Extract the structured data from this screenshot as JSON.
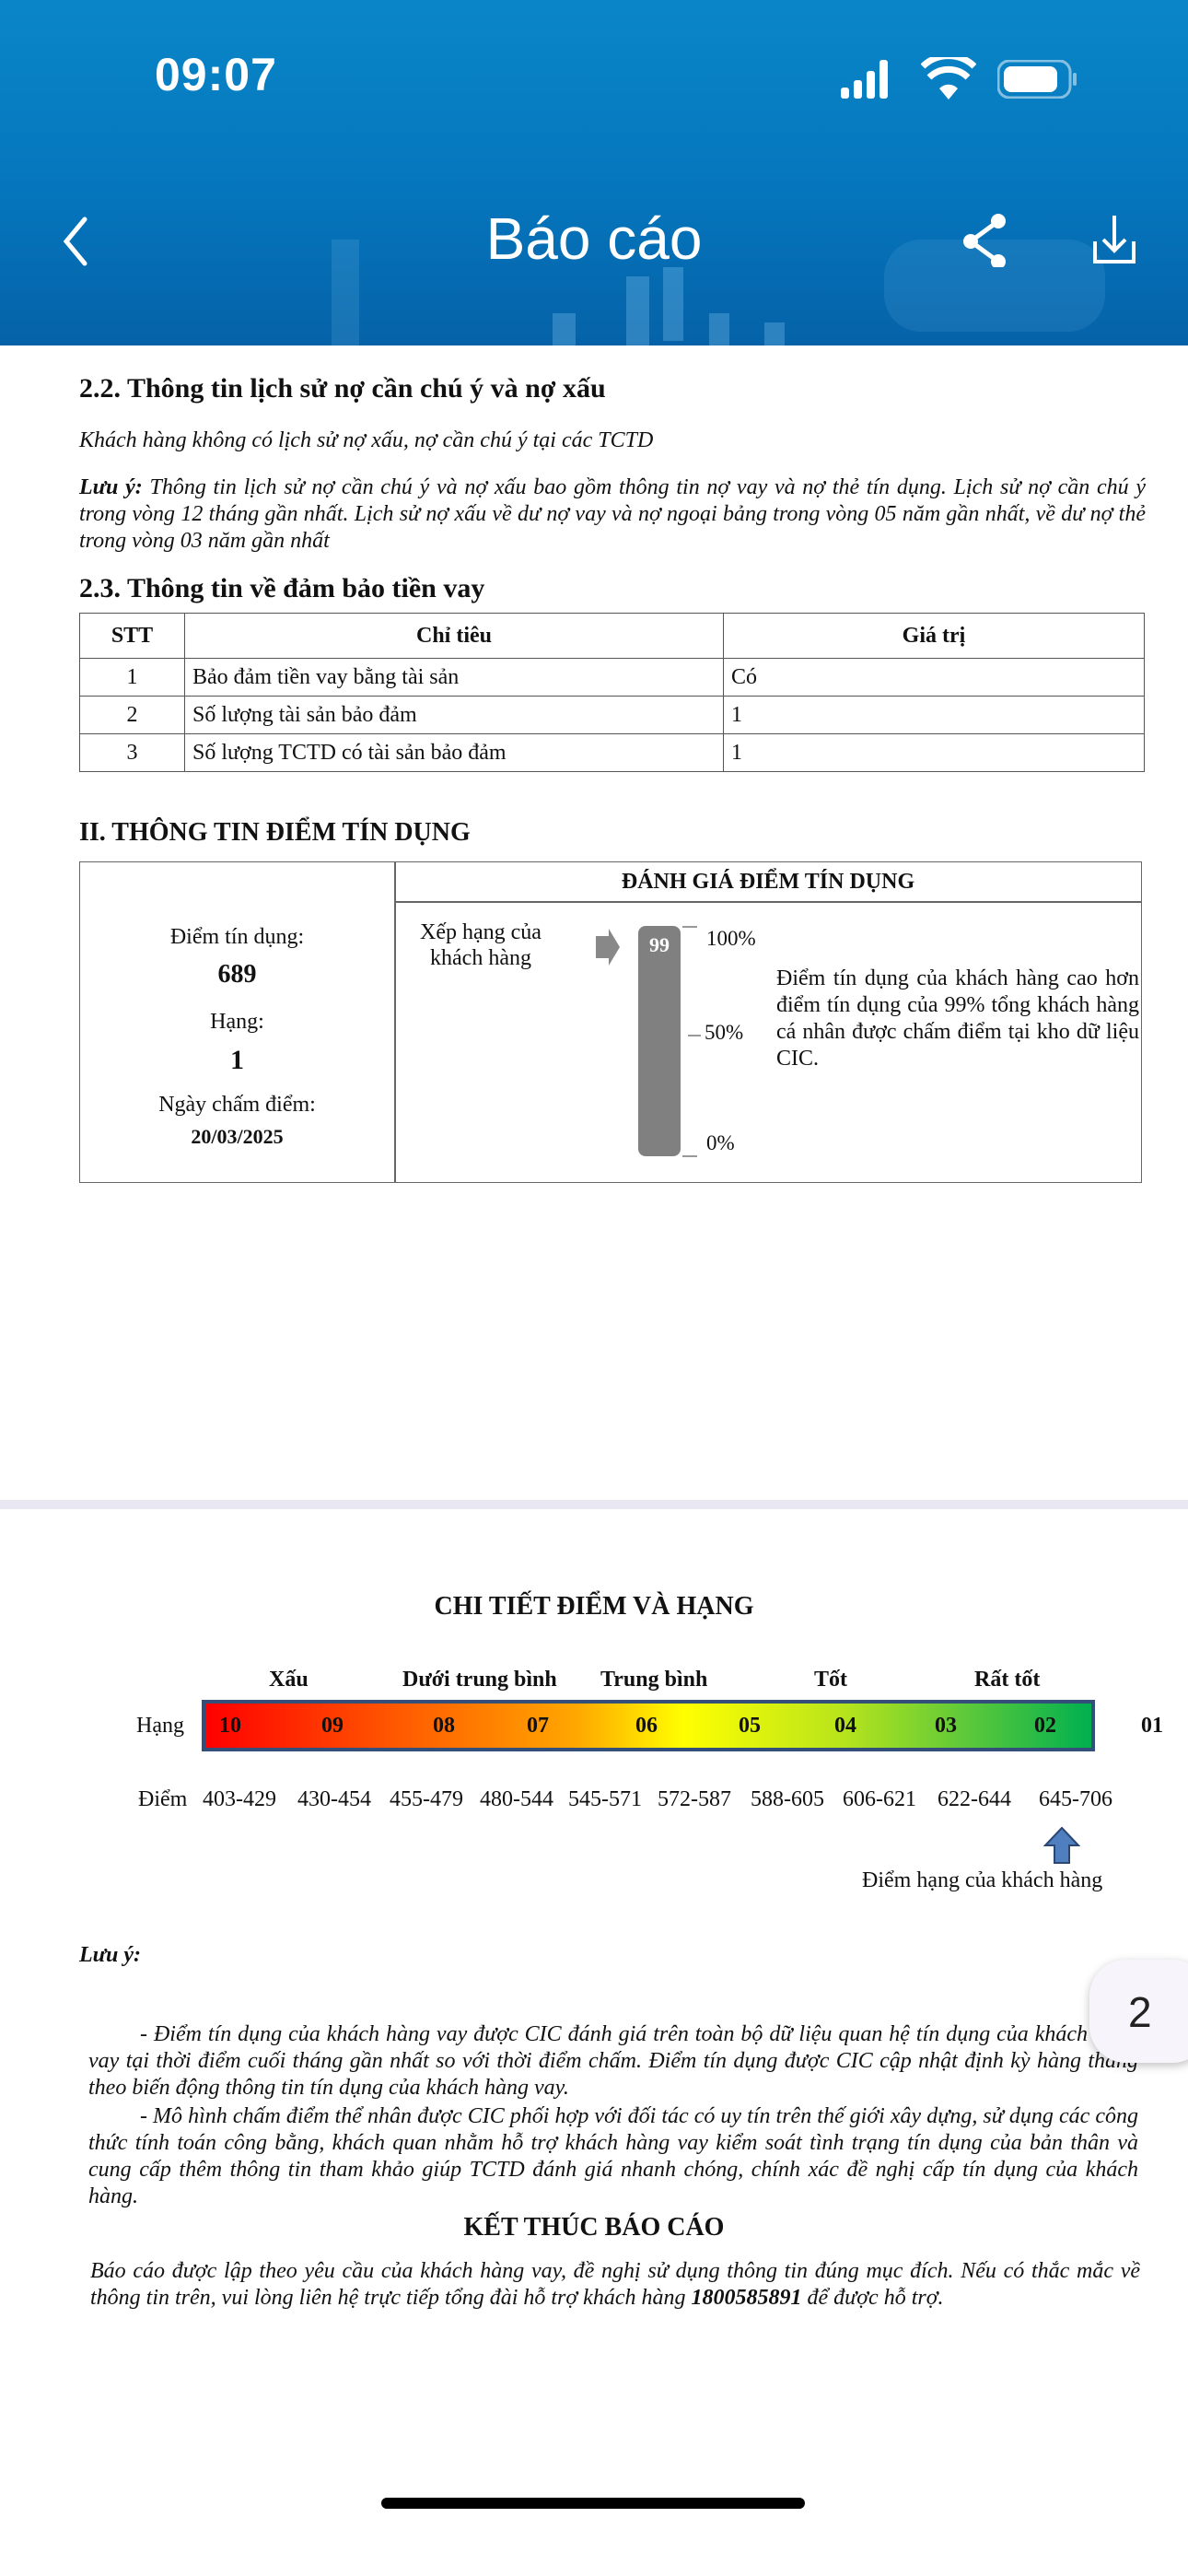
{
  "status_bar": {
    "time": "09:07"
  },
  "header": {
    "title": "Báo cáo",
    "back_icon": "chevron-left-icon",
    "share_icon": "share-icon",
    "download_icon": "download-icon"
  },
  "section_2_2": {
    "heading": "2.2. Thông tin lịch sử nợ cần chú ý và nợ xấu",
    "statement": "Khách hàng không có lịch sử nợ xấu, nợ cần chú ý tại các TCTD",
    "note_label": "Lưu ý:",
    "note_text": "Thông tin lịch sử nợ cần chú ý và nợ xấu bao gồm thông tin nợ vay và nợ thẻ tín dụng. Lịch sử nợ cần chú ý trong vòng 12 tháng gần nhất. Lịch sử nợ xấu về dư nợ vay và nợ ngoại bảng trong vòng 05 năm gần nhất, về dư nợ thẻ trong vòng 03 năm gần nhất"
  },
  "section_2_3": {
    "heading": "2.3. Thông tin về đảm bảo tiền vay",
    "columns": [
      "STT",
      "Chỉ tiêu",
      "Giá trị"
    ],
    "rows": [
      [
        "1",
        "Bảo đảm tiền vay bằng tài sản",
        "Có"
      ],
      [
        "2",
        "Số lượng tài sản bảo đảm",
        "1"
      ],
      [
        "3",
        "Số lượng TCTD có tài sản bảo đảm",
        "1"
      ]
    ]
  },
  "section_II": {
    "heading": "II. THÔNG TIN ĐIỂM TÍN DỤNG",
    "score_label": "Điểm tín dụng:",
    "score": "689",
    "rank_label": "Hạng:",
    "rank": "1",
    "date_label": "Ngày chấm điểm:",
    "date": "20/03/2025",
    "eval_heading": "ĐÁNH GIÁ ĐIỂM TÍN DỤNG",
    "position_label_1": "Xếp hạng của",
    "position_label_2": "khách hàng",
    "percentile": "99",
    "percentile_value": 99,
    "ticks": [
      "100%",
      "50%",
      "0%"
    ],
    "description": "Điểm tín dụng của khách hàng cao hơn điểm tín dụng của 99% tổng khách hàng cá nhân được chấm điểm tại kho dữ liệu CIC."
  },
  "detail": {
    "heading": "CHI TIẾT ĐIỂM VÀ HẠNG",
    "bands": [
      "Xấu",
      "Dưới trung bình",
      "Trung bình",
      "Tốt",
      "Rất tốt"
    ],
    "rank_row_label": "Hạng",
    "ranks": [
      "10",
      "09",
      "08",
      "07",
      "06",
      "05",
      "04",
      "03",
      "02",
      "01"
    ],
    "score_row_label": "Điểm",
    "ranges": [
      "403-429",
      "430-454",
      "455-479",
      "480-544",
      "545-571",
      "572-587",
      "588-605",
      "606-621",
      "622-644",
      "645-706"
    ],
    "customer_marker_label": "Điểm hạng của khách hàng",
    "colors": {
      "low": "#ff0000",
      "mid": "#ffff00",
      "high": "#00b050",
      "border": "#34507a"
    }
  },
  "notes": {
    "label": "Lưu ý:",
    "p1": "- Điểm tín dụng của khách hàng vay được CIC đánh giá trên toàn bộ dữ liệu quan hệ tín dụng của khách hàng vay tại thời điểm cuối tháng gần nhất so với thời điểm chấm. Điểm tín dụng được CIC cập nhật định kỳ hàng tháng theo biến động thông tin tín dụng của khách hàng vay.",
    "p2": "- Mô hình chấm điểm thể nhân được CIC phối hợp với đối tác có uy tín trên thế giới xây dựng, sử dụng các công thức tính toán công bằng, khách quan nhằm hỗ trợ khách hàng vay kiểm soát tình trạng tín dụng của bản thân và cung cấp thêm thông tin tham khảo giúp TCTD đánh giá nhanh chóng, chính xác đề nghị cấp tín dụng của khách hàng."
  },
  "end": {
    "heading": "KẾT THÚC BÁO CÁO",
    "text_before": "Báo cáo được lập theo yêu cầu của khách hàng vay, đề nghị sử dụng thông tin đúng mục đích. Nếu có thắc mắc về thông tin trên, vui lòng liên hệ trực tiếp tổng đài hỗ trợ khách hàng ",
    "hotline": "1800585891",
    "text_after": " để được hỗ trợ."
  },
  "page_indicator": "2"
}
